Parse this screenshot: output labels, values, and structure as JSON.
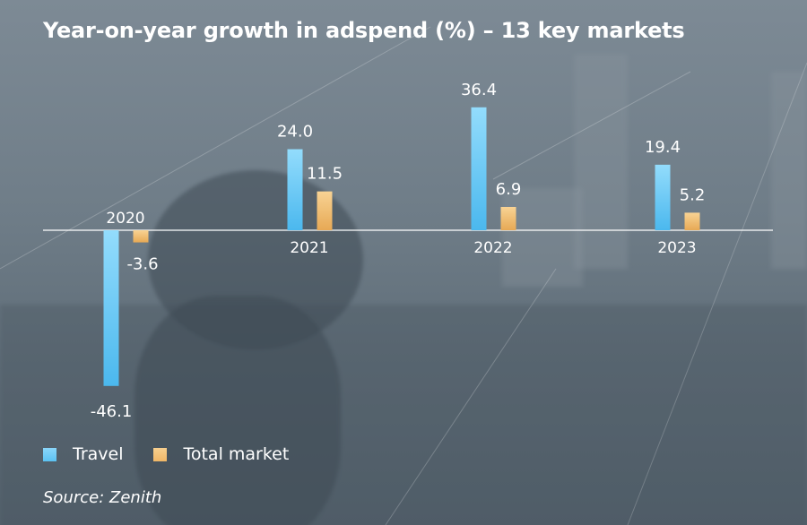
{
  "title": "Year-on-year growth in adspend (%) – 13 key markets",
  "source": "Source: Zenith",
  "legend": [
    {
      "name": "Travel",
      "color": "#5bc2f2"
    },
    {
      "name": "Total market",
      "color": "#f0b767"
    }
  ],
  "chart_data": {
    "type": "bar",
    "title": "Year-on-year growth in adspend (%) – 13 key markets",
    "categories": [
      "2020",
      "2021",
      "2022",
      "2023"
    ],
    "series": [
      {
        "name": "Travel",
        "values": [
          -46.1,
          24.0,
          36.4,
          19.4
        ]
      },
      {
        "name": "Total market",
        "values": [
          -3.6,
          11.5,
          6.9,
          5.2
        ]
      }
    ],
    "value_labels": [
      [
        "-46.1",
        "24.0",
        "36.4",
        "19.4"
      ],
      [
        "-3.6",
        "11.5",
        "6.9",
        "5.2"
      ]
    ],
    "xlabel": "",
    "ylabel": "",
    "ylim": [
      -50,
      40
    ],
    "grid": false,
    "legend_position": "bottom-left"
  }
}
